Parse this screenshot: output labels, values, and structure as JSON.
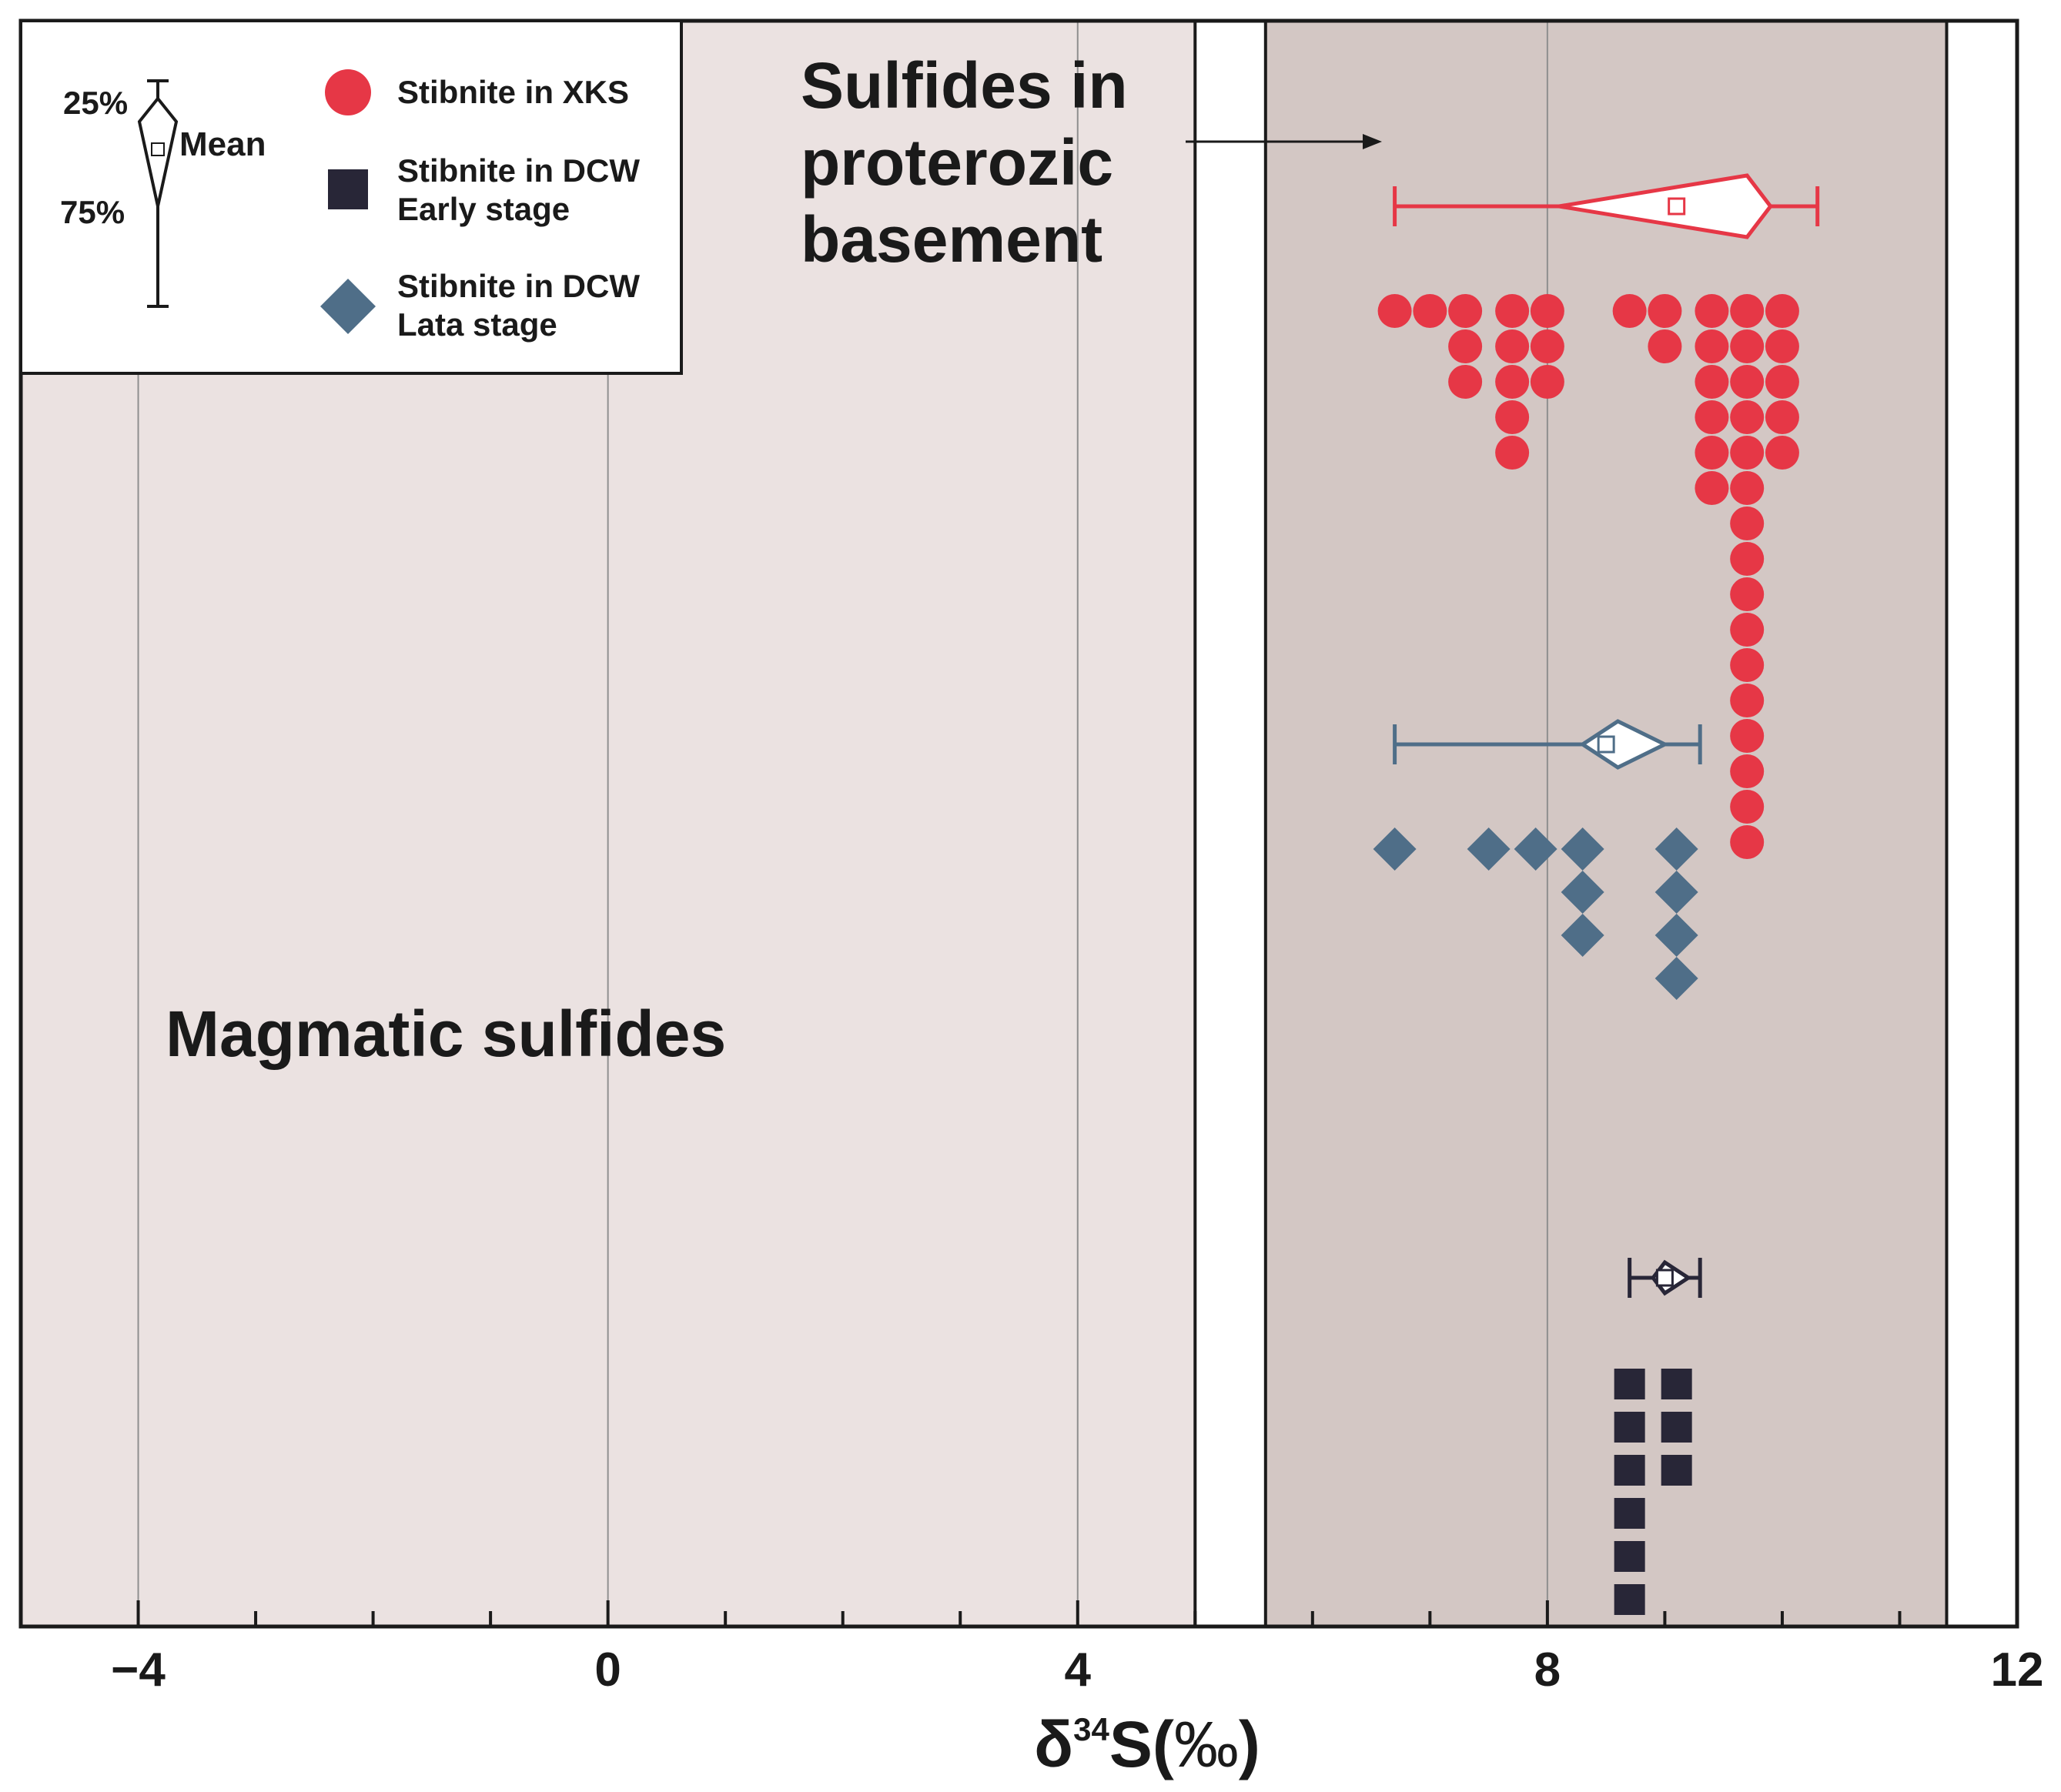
{
  "chart_data": {
    "type": "scatter",
    "subtype": "dot-strip-plot with violin summaries",
    "x_axis": {
      "label": "δ³⁴S(‰)",
      "label_parts": {
        "delta": "δ",
        "superscript": "34",
        "element": "S(",
        "unit": "‰",
        "close": ")"
      },
      "xlim": [
        -5,
        12
      ],
      "ticks": [
        -4,
        0,
        4,
        8,
        12
      ],
      "tick_labels": [
        "−4",
        "0",
        "4",
        "8",
        "12"
      ],
      "minor_tick_step": 1
    },
    "y_axis": {
      "label": "",
      "shown": false
    },
    "grid": {
      "vertical_lines_at": [
        -4,
        0,
        4,
        8
      ],
      "horizontal": false
    },
    "regions": [
      {
        "label": "Magmatic sulfides",
        "x_range": [
          -5,
          5
        ],
        "fill": "#ebe2e1"
      },
      {
        "label": "Sulfides in proterozic basement",
        "x_range": [
          5.6,
          11.4
        ],
        "fill": "#d3c7c4"
      }
    ],
    "annotations": [
      {
        "text_lines": [
          "Sulfides in",
          "proterozic",
          "basement"
        ],
        "arrow": true
      }
    ],
    "legend": {
      "placement": "top-left",
      "entries": [
        {
          "lines": [
            "Stibnite in XKS"
          ],
          "marker": "circle",
          "color": "#e63746"
        },
        {
          "lines": [
            "Stibnite in DCW",
            "Early stage"
          ],
          "marker": "square",
          "color": "#282637"
        },
        {
          "lines": [
            "Stibnite in DCW",
            "Lata stage"
          ],
          "marker": "diamond",
          "color": "#4f6e88"
        }
      ],
      "key": {
        "top_label": "25%",
        "bottom_label": "75%",
        "mean_label": "Mean"
      }
    },
    "series": [
      {
        "name": "Stibnite in XKS",
        "marker": "circle",
        "color": "#e63746",
        "columns": [
          {
            "x": 6.7,
            "count": 1
          },
          {
            "x": 7.0,
            "count": 1
          },
          {
            "x": 7.3,
            "count": 3
          },
          {
            "x": 7.7,
            "count": 5
          },
          {
            "x": 8.0,
            "count": 3
          },
          {
            "x": 8.7,
            "count": 1
          },
          {
            "x": 9.0,
            "count": 2
          },
          {
            "x": 9.4,
            "count": 6
          },
          {
            "x": 9.7,
            "count": 16
          },
          {
            "x": 10.0,
            "count": 5
          }
        ],
        "summary": {
          "whisker_low": 6.7,
          "q25": 8.1,
          "q75": 9.9,
          "mean": 9.1,
          "whisker_high": 10.3,
          "peak": 9.7
        }
      },
      {
        "name": "Stibnite in DCW Lata stage",
        "marker": "diamond",
        "color": "#4f6e88",
        "columns": [
          {
            "x": 6.7,
            "count": 1
          },
          {
            "x": 7.5,
            "count": 1
          },
          {
            "x": 7.9,
            "count": 1
          },
          {
            "x": 8.3,
            "count": 3
          },
          {
            "x": 9.1,
            "count": 4
          }
        ],
        "summary": {
          "whisker_low": 6.7,
          "q25": 8.3,
          "q75": 9.0,
          "mean": 8.5,
          "whisker_high": 9.3,
          "peak": 8.6
        }
      },
      {
        "name": "Stibnite in DCW Early stage",
        "marker": "square",
        "color": "#282637",
        "columns": [
          {
            "x": 8.7,
            "count": 6
          },
          {
            "x": 9.1,
            "count": 3
          }
        ],
        "summary": {
          "whisker_low": 8.7,
          "q25": 8.9,
          "q75": 9.2,
          "mean": 9.0,
          "whisker_high": 9.3,
          "peak": 9.0
        }
      }
    ]
  }
}
